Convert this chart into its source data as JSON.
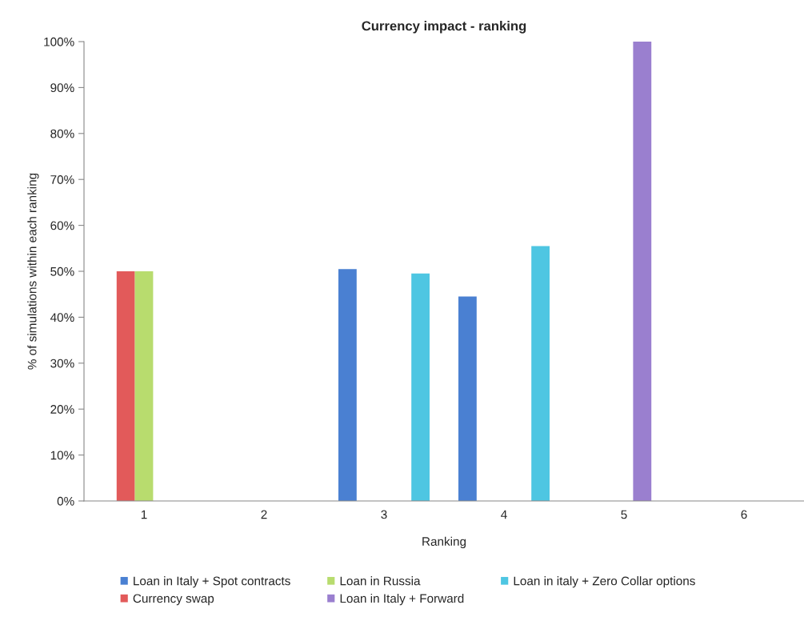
{
  "chart_data": {
    "type": "bar",
    "title": "Currency impact - ranking",
    "xlabel": "Ranking",
    "ylabel": "% of simulations within each ranking",
    "categories": [
      "1",
      "2",
      "3",
      "4",
      "5",
      "6"
    ],
    "series": [
      {
        "name": "Loan in Italy + Spot contracts",
        "color": "#4a80d2",
        "values": [
          0,
          0,
          50.5,
          44.5,
          0,
          0
        ]
      },
      {
        "name": "Currency swap",
        "color": "#e25a5a",
        "values": [
          50,
          0,
          0,
          0,
          0,
          0
        ]
      },
      {
        "name": "Loan in Russia",
        "color": "#b8dc6e",
        "values": [
          50,
          0,
          0,
          0,
          0,
          0
        ]
      },
      {
        "name": "Loan in Italy + Forward",
        "color": "#9a7fcf",
        "values": [
          0,
          0,
          0,
          0,
          100,
          0
        ]
      },
      {
        "name": "Loan in italy + Zero Collar options",
        "color": "#4ec6e2",
        "values": [
          0,
          0,
          49.5,
          55.5,
          0,
          0
        ]
      }
    ],
    "ylim": [
      0,
      100
    ],
    "yticks": [
      {
        "value": 0,
        "label": "0%"
      },
      {
        "value": 10,
        "label": "10%"
      },
      {
        "value": 20,
        "label": "20%"
      },
      {
        "value": 30,
        "label": "30%"
      },
      {
        "value": 40,
        "label": "40%"
      },
      {
        "value": 50,
        "label": "50%"
      },
      {
        "value": 60,
        "label": "60%"
      },
      {
        "value": 70,
        "label": "70%"
      },
      {
        "value": 80,
        "label": "80%"
      },
      {
        "value": 90,
        "label": "90%"
      },
      {
        "value": 100,
        "label": "100%"
      }
    ],
    "grid": false,
    "legend": "bottom"
  }
}
